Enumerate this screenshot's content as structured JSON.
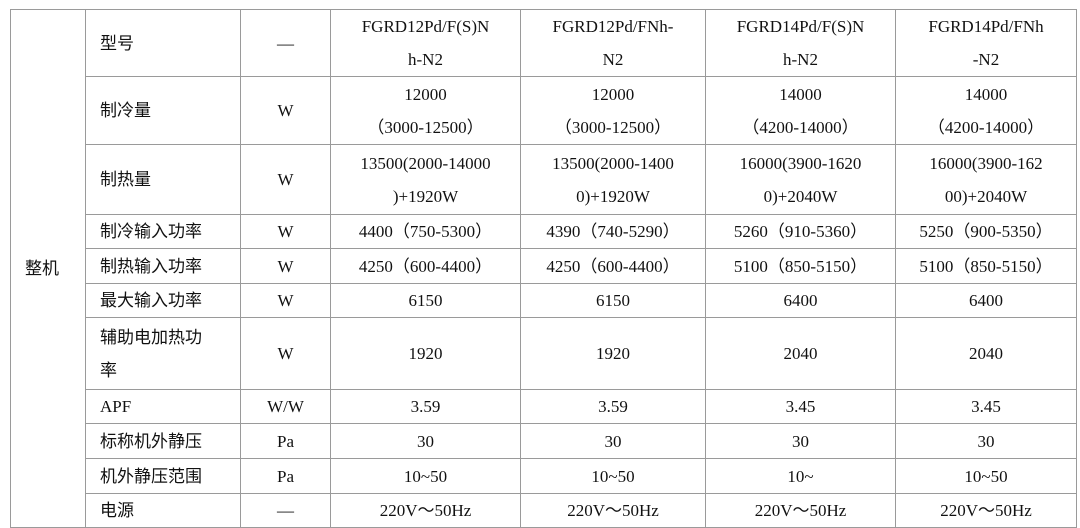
{
  "table": {
    "group": "整机",
    "rows": [
      [
        "型号",
        "—",
        [
          "FGRD12Pd/F(S)N",
          "h-N2"
        ],
        [
          "FGRD12Pd/FNh-",
          "N2"
        ],
        [
          "FGRD14Pd/F(S)N",
          "h-N2"
        ],
        [
          "FGRD14Pd/FNh",
          "-N2"
        ]
      ],
      [
        "制冷量",
        "W",
        [
          "12000",
          "（3000-12500）"
        ],
        [
          "12000",
          "（3000-12500）"
        ],
        [
          "14000",
          "（4200-14000）"
        ],
        [
          "14000",
          "（4200-14000）"
        ]
      ],
      [
        "制热量",
        "W",
        [
          "13500(2000-14000",
          ")+1920W"
        ],
        [
          "13500(2000-1400",
          "0)+1920W"
        ],
        [
          "16000(3900-1620",
          "0)+2040W"
        ],
        [
          "16000(3900-162",
          "00)+2040W"
        ]
      ],
      [
        "制冷输入功率",
        "W",
        "4400（750-5300）",
        "4390（740-5290）",
        "5260（910-5360）",
        "5250（900-5350）"
      ],
      [
        "制热输入功率",
        "W",
        "4250（600-4400）",
        "4250（600-4400）",
        "5100（850-5150）",
        "5100（850-5150）"
      ],
      [
        "最大输入功率",
        "W",
        "6150",
        "6150",
        "6400",
        "6400"
      ],
      [
        [
          "辅助电加热功",
          "率"
        ],
        "W",
        "1920",
        "1920",
        "2040",
        "2040"
      ],
      [
        "APF",
        "W/W",
        "3.59",
        "3.59",
        "3.45",
        "3.45"
      ],
      [
        "标称机外静压",
        "Pa",
        "30",
        "30",
        "30",
        "30"
      ],
      [
        "机外静压范围",
        "Pa",
        "10~50",
        "10~50",
        "10~",
        "10~50"
      ],
      [
        "电源",
        "—",
        "220V～50Hz",
        "220V～50Hz",
        "220V～50Hz",
        "220V～50Hz"
      ]
    ]
  }
}
